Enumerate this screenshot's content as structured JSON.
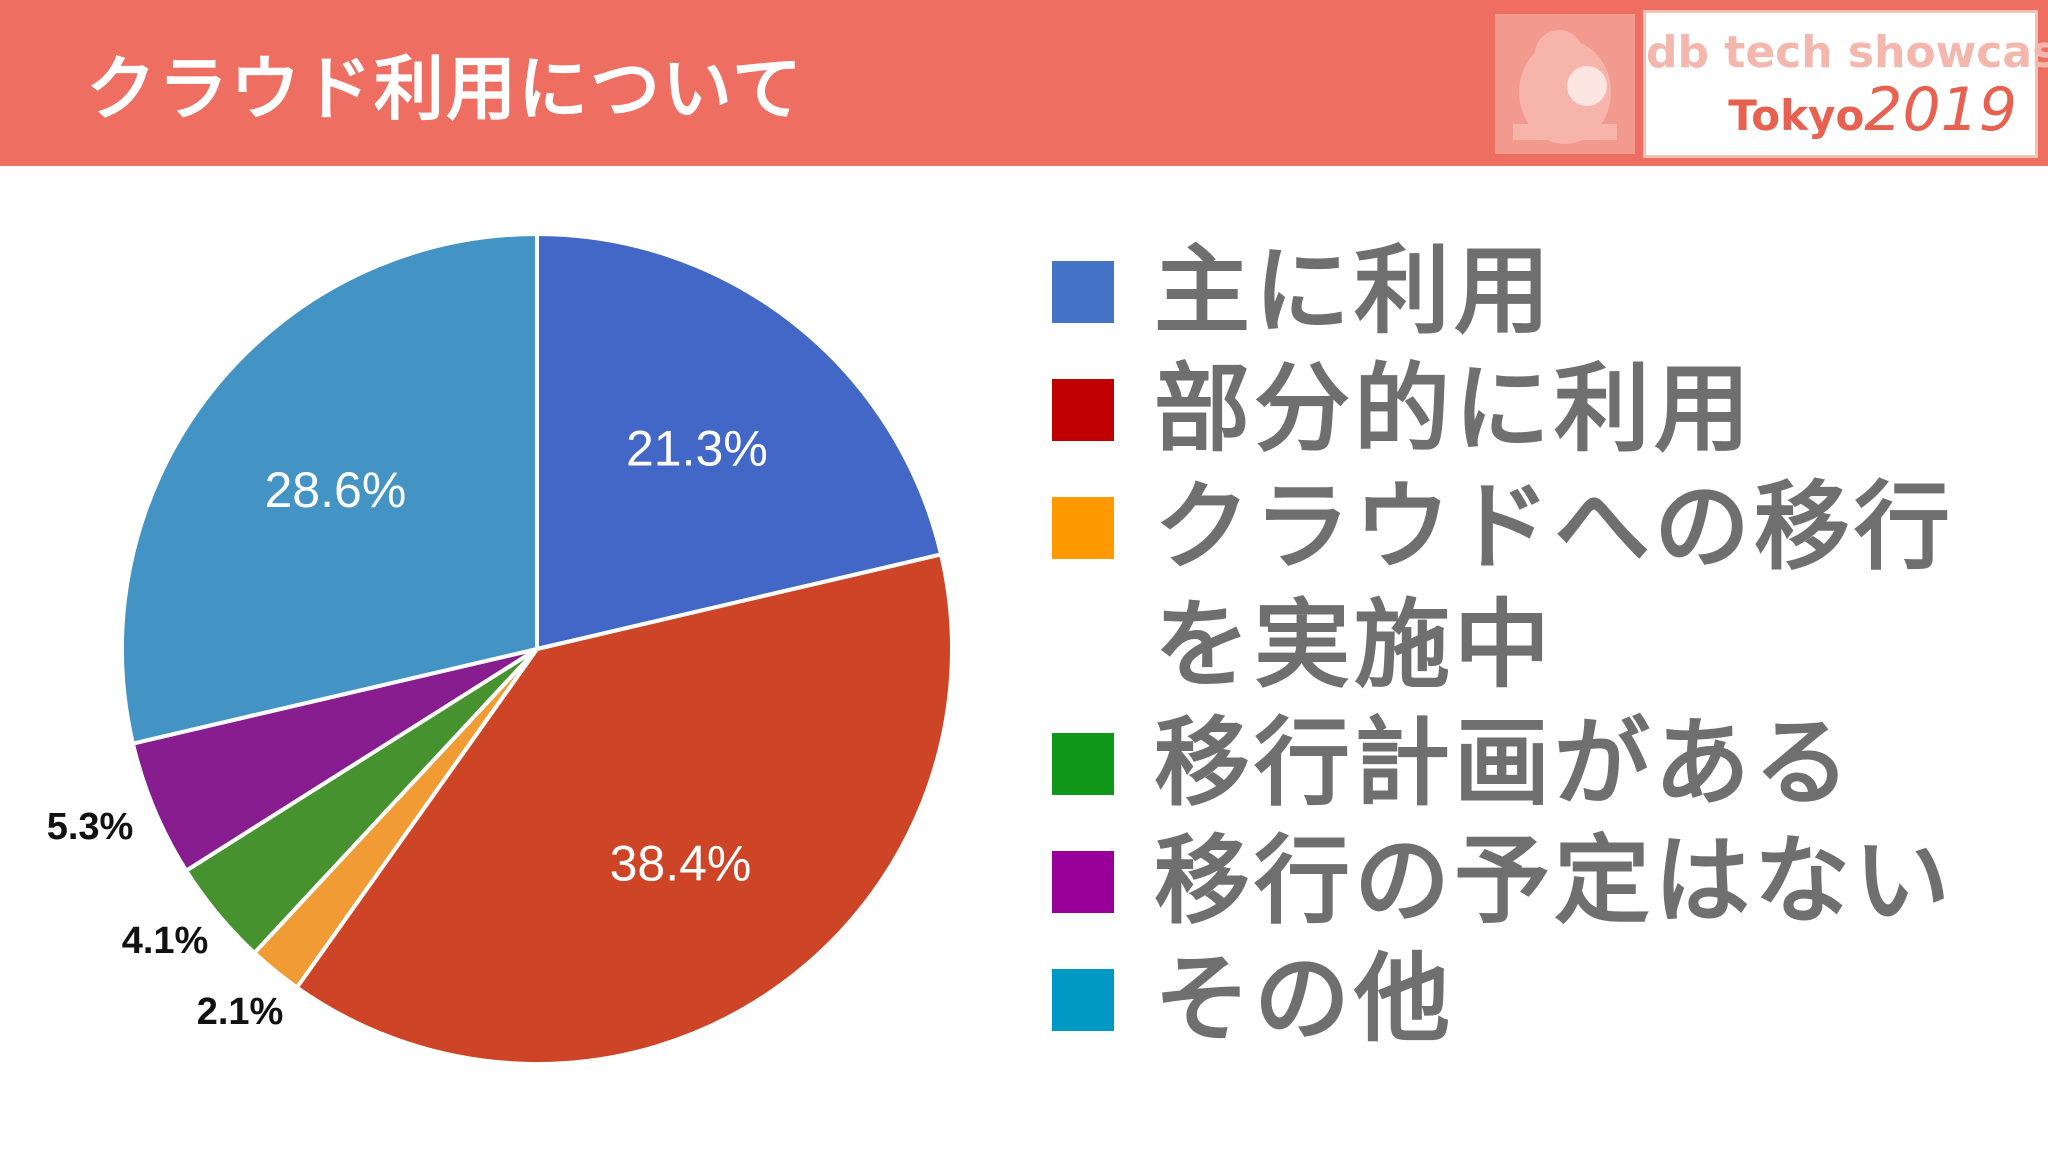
{
  "header": {
    "title": "クラウド利用について",
    "logo": {
      "line1": "db tech showcase",
      "city": "Tokyo",
      "year": "2019"
    }
  },
  "colors": {
    "header_bg": "#ee6e62",
    "legend_text": "#6f6f6f"
  },
  "chart_data": {
    "type": "pie",
    "start": "12 o'clock, clockwise",
    "slices": [
      {
        "label": "主に利用",
        "value": 21.3,
        "text": "21.3%",
        "color": "#4267c6",
        "legend_color": "#4472c4"
      },
      {
        "label": "部分的に利用",
        "value": 38.4,
        "text": "38.4%",
        "color": "#cd4526",
        "legend_color": "#c00000"
      },
      {
        "label": "クラウドへの移行を実施中",
        "value": 2.1,
        "text": "2.1%",
        "color": "#f09b33",
        "legend_color": "#ff9900"
      },
      {
        "label": "移行計画がある",
        "value": 4.1,
        "text": "4.1%",
        "color": "#45922e",
        "legend_color": "#109618"
      },
      {
        "label": "移行の予定はない",
        "value": 5.3,
        "text": "5.3%",
        "color": "#871d8f",
        "legend_color": "#990099"
      },
      {
        "label": "その他",
        "value": 28.6,
        "text": "28.6%",
        "color": "#4394c4",
        "legend_color": "#0099c6"
      }
    ],
    "legend_position": "right"
  }
}
